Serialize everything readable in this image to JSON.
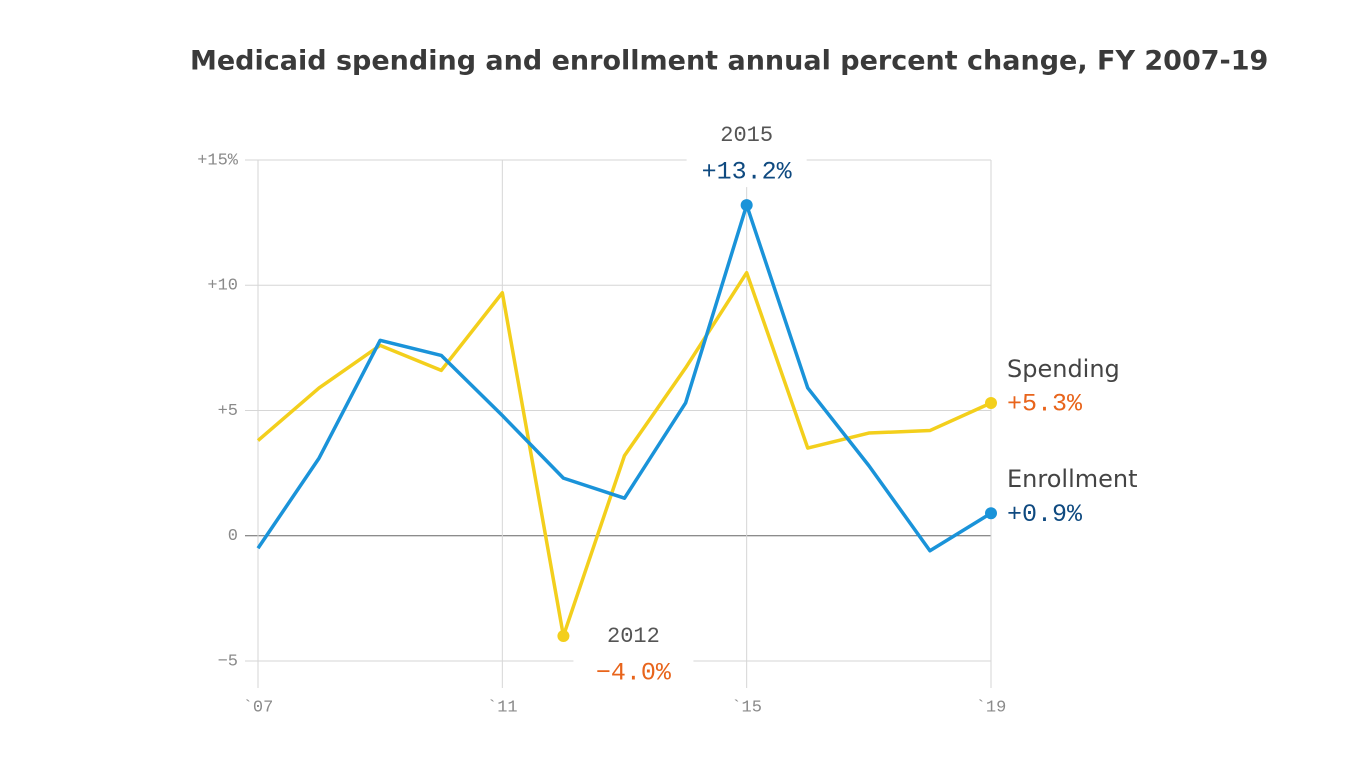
{
  "chart_data": {
    "type": "line",
    "title": "Medicaid spending and enrollment annual percent change, FY 2007-19",
    "x": [
      2007,
      2008,
      2009,
      2010,
      2011,
      2012,
      2013,
      2014,
      2015,
      2016,
      2017,
      2018,
      2019
    ],
    "xlim": [
      2007,
      2019
    ],
    "xticks": [
      {
        "value": 2007,
        "label": "`07"
      },
      {
        "value": 2011,
        "label": "`11"
      },
      {
        "value": 2015,
        "label": "`15"
      },
      {
        "value": 2019,
        "label": "`19"
      }
    ],
    "ylim": [
      -5,
      15
    ],
    "yticks": [
      {
        "value": 15,
        "label": "+15%"
      },
      {
        "value": 10,
        "label": "+10"
      },
      {
        "value": 5,
        "label": "+5"
      },
      0,
      {
        "value": -5,
        "label": "−5"
      }
    ],
    "grid": true,
    "series": [
      {
        "name": "Spending",
        "color": "#f3cf1c",
        "label_color": "#e8641b",
        "values": [
          3.8,
          5.9,
          7.6,
          6.6,
          9.7,
          -4.0,
          3.2,
          6.7,
          10.5,
          3.5,
          4.1,
          4.2,
          5.3
        ],
        "value_labels": [
          null,
          null,
          null,
          null,
          null,
          "−4.0%",
          null,
          null,
          null,
          null,
          null,
          null,
          "+5.3%"
        ]
      },
      {
        "name": "Enrollment",
        "color": "#1a93d9",
        "label_color": "#0f4a80",
        "values": [
          -0.5,
          3.1,
          7.8,
          7.2,
          4.8,
          2.3,
          1.5,
          5.3,
          13.2,
          5.9,
          2.8,
          -0.6,
          0.9
        ],
        "value_labels": [
          null,
          null,
          null,
          null,
          null,
          null,
          null,
          null,
          "+13.2%",
          null,
          null,
          null,
          "+0.9%"
        ]
      }
    ],
    "annotations": [
      {
        "x": 2015,
        "text": "2015"
      },
      {
        "x": 2012,
        "text": "2012"
      }
    ]
  }
}
